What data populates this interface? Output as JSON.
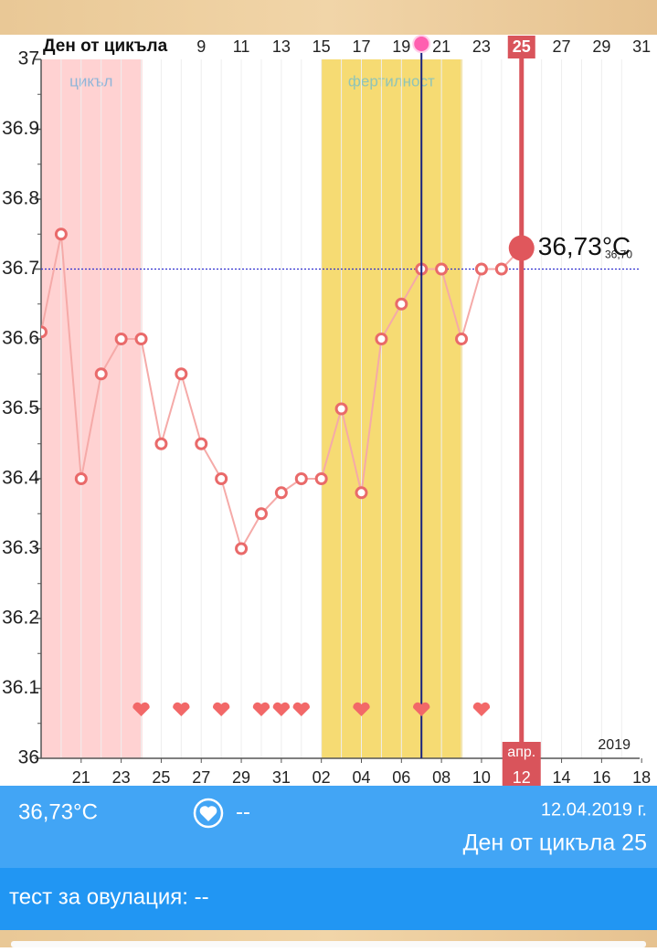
{
  "chart_data": {
    "type": "line",
    "x_label": "Ден от цикъла",
    "x": [
      1,
      2,
      3,
      4,
      5,
      6,
      7,
      8,
      9,
      10,
      11,
      12,
      13,
      14,
      15,
      16,
      17,
      18,
      19,
      20,
      21,
      22,
      23,
      24,
      25
    ],
    "series": [
      {
        "color": "#e96a6a",
        "values": [
          36.61,
          36.75,
          36.4,
          36.55,
          36.6,
          36.6,
          36.45,
          36.55,
          36.45,
          36.4,
          36.3,
          36.35,
          36.38,
          36.4,
          36.4,
          36.5,
          36.38,
          36.6,
          36.65,
          36.7,
          36.7,
          36.6,
          36.7,
          36.7,
          36.73
        ]
      }
    ],
    "current": {
      "value": 36.73,
      "label": "36,73°C"
    },
    "reference_line": {
      "value": 36.7,
      "label": "36,70"
    },
    "ovulation_day": 20,
    "current_day": 25,
    "zones": [
      {
        "label": "цикъл",
        "start": 1,
        "end": 6,
        "color": "#ffd2d2",
        "text_color": "#8fb5d8"
      },
      {
        "label": "фертилност",
        "start": 15,
        "end": 22,
        "color": "#f6db73",
        "text_color": "#8fc4b8"
      }
    ],
    "hearts": [
      6,
      8,
      10,
      12,
      13,
      14,
      17,
      20,
      23
    ],
    "xlim": [
      1,
      30.9
    ],
    "xticks": [
      9,
      11,
      13,
      15,
      17,
      19,
      21,
      23,
      25,
      27,
      29,
      31
    ],
    "date_ticks": [
      {
        "value": 3,
        "label": "21"
      },
      {
        "value": 5,
        "label": "23"
      },
      {
        "value": 7,
        "label": "25"
      },
      {
        "value": 9,
        "label": "27"
      },
      {
        "value": 11,
        "label": "29"
      },
      {
        "value": 13,
        "label": "31"
      },
      {
        "value": 15,
        "label": "02"
      },
      {
        "value": 17,
        "label": "04"
      },
      {
        "value": 19,
        "label": "06"
      },
      {
        "value": 21,
        "label": "08"
      },
      {
        "value": 23,
        "label": "10"
      },
      {
        "value": 25,
        "label": "12"
      },
      {
        "value": 27,
        "label": "14"
      },
      {
        "value": 29,
        "label": "16"
      },
      {
        "value": 31,
        "label": "18"
      }
    ],
    "month_label": "апр.",
    "year_label": "2019",
    "ylim": [
      36,
      37
    ],
    "yticks": [
      36,
      36.1,
      36.2,
      36.3,
      36.4,
      36.5,
      36.6,
      36.7,
      36.8,
      36.9,
      37
    ]
  },
  "info": {
    "temperature": "36,73°C",
    "intercourse": "--",
    "date": "12.04.2019 г.",
    "cycle_day": "Ден от цикъла 25",
    "test": "тест за овулация: --"
  }
}
